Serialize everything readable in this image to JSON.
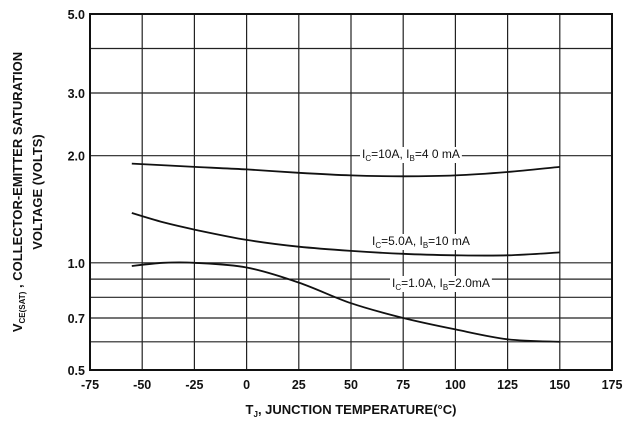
{
  "chart_data": {
    "type": "line",
    "x_axis": {
      "label_main": "T",
      "label_sub": "J",
      "label_rest": ", JUNCTION  TEMPERATURE(°C)",
      "lim": [
        -75,
        175
      ],
      "ticks": [
        -75,
        -50,
        -25,
        0,
        25,
        50,
        75,
        100,
        125,
        150,
        175
      ]
    },
    "y_axis": {
      "label_line1_main": "V",
      "label_line1_sub": "CE(SAT)",
      "label_line1_rest": " , COLLECTOR-EMITTER SATURATION",
      "label_line2": "VOLTAGE (VOLTS)",
      "scale": "log",
      "lim": [
        0.5,
        5.0
      ],
      "tick_labels": [
        {
          "value": 0.5,
          "label": "0.5"
        },
        {
          "value": 0.7,
          "label": "0.7"
        },
        {
          "value": 1.0,
          "label": "1.0"
        },
        {
          "value": 2.0,
          "label": "2.0"
        },
        {
          "value": 3.0,
          "label": "3.0"
        },
        {
          "value": 5.0,
          "label": "5.0"
        }
      ],
      "gridlines": [
        0.5,
        0.6,
        0.7,
        0.8,
        0.9,
        1.0,
        2.0,
        3.0,
        4.0,
        5.0
      ]
    },
    "grid": true,
    "series": [
      {
        "name": "IC=10A, IB=4 0 mA",
        "label_parts": {
          "a": "I",
          "a_sub": "C",
          "b": "=10A, I",
          "b_sub": "B",
          "c": "=4 0 mA"
        },
        "x": [
          -55,
          -25,
          0,
          25,
          50,
          75,
          100,
          125,
          150
        ],
        "y": [
          1.9,
          1.86,
          1.83,
          1.79,
          1.76,
          1.75,
          1.76,
          1.8,
          1.86
        ]
      },
      {
        "name": "IC=5.0A, IB=10 mA",
        "label_parts": {
          "a": "I",
          "a_sub": "C",
          "b": "=5.0A, I",
          "b_sub": "B",
          "c": "=10 mA"
        },
        "x": [
          -55,
          -40,
          -25,
          0,
          25,
          50,
          75,
          100,
          125,
          150
        ],
        "y": [
          1.38,
          1.3,
          1.24,
          1.16,
          1.11,
          1.08,
          1.06,
          1.05,
          1.05,
          1.07
        ]
      },
      {
        "name": "IC=1.0A, IB=2.0mA",
        "label_parts": {
          "a": "I",
          "a_sub": "C",
          "b": "=1.0A, I",
          "b_sub": "B",
          "c": "=2.0mA"
        },
        "x": [
          -55,
          -40,
          -25,
          0,
          25,
          50,
          75,
          100,
          125,
          150
        ],
        "y": [
          0.98,
          1.0,
          1.0,
          0.97,
          0.88,
          0.77,
          0.7,
          0.65,
          0.61,
          0.6
        ]
      }
    ]
  }
}
